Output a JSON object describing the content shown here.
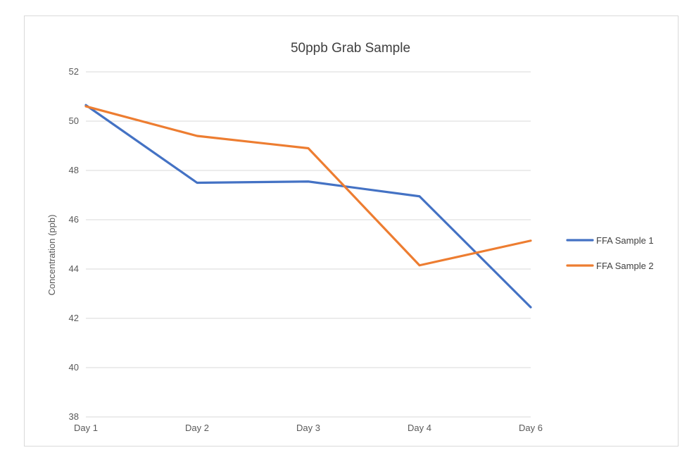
{
  "chart_data": {
    "type": "line",
    "title": "50ppb Grab Sample",
    "xlabel": "",
    "ylabel": "Concentration (ppb)",
    "categories": [
      "Day 1",
      "Day 2",
      "Day 3",
      "Day 4",
      "Day 6"
    ],
    "ylim": [
      38,
      52
    ],
    "yticks": [
      38,
      40,
      42,
      44,
      46,
      48,
      50,
      52
    ],
    "grid": true,
    "legend_position": "right",
    "series": [
      {
        "name": "FFA Sample 1",
        "color": "#4472c4",
        "values": [
          50.65,
          47.5,
          47.55,
          46.95,
          42.45
        ]
      },
      {
        "name": "FFA Sample 2",
        "color": "#ed7d31",
        "values": [
          50.6,
          49.4,
          48.9,
          44.15,
          45.15
        ]
      }
    ]
  }
}
